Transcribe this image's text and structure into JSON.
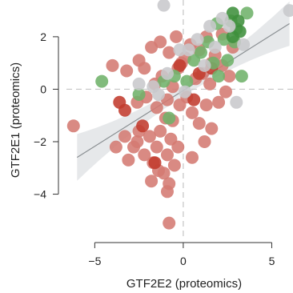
{
  "chart_data": {
    "type": "scatter",
    "xlabel": "GTF2E2 (proteomics)",
    "ylabel": "GTF2E1 (proteomics)",
    "xlim": [
      -6.6,
      6.2
    ],
    "ylim": [
      -5.6,
      3.4
    ],
    "x_ticks": [
      -5,
      0,
      5
    ],
    "y_ticks": [
      -4,
      -2,
      0,
      2
    ],
    "reference_lines": {
      "x": 0,
      "y": 0,
      "style": "dashed"
    },
    "regression_line": {
      "x": [
        -6,
        6
      ],
      "y": [
        -2.6,
        2.5
      ],
      "confidence_band": true
    },
    "grid": false,
    "legend": "none",
    "colors": {
      "red": "#d47a72",
      "dark_red": "#c23b2e",
      "green": "#6fb26a",
      "dark_green": "#3f8f3c",
      "grey": "#c8c8cc",
      "band": "#e3e6e8",
      "line": "#8a8f92",
      "ref_line": "#c4c4c4"
    },
    "points": [
      {
        "x": -6.2,
        "y": -1.4,
        "c": "red"
      },
      {
        "x": -3.8,
        "y": -2.2,
        "c": "red"
      },
      {
        "x": -3.3,
        "y": -1.8,
        "c": "red"
      },
      {
        "x": -3.1,
        "y": -2.7,
        "c": "red"
      },
      {
        "x": -2.8,
        "y": -2.2,
        "c": "red"
      },
      {
        "x": -2.5,
        "y": -1.6,
        "c": "red"
      },
      {
        "x": -2.2,
        "y": -2.5,
        "c": "red"
      },
      {
        "x": -1.9,
        "y": -1.8,
        "c": "red"
      },
      {
        "x": -1.7,
        "y": -2.8,
        "c": "red"
      },
      {
        "x": -1.5,
        "y": -2.2,
        "c": "red"
      },
      {
        "x": -1.3,
        "y": -1.6,
        "c": "red"
      },
      {
        "x": -1.1,
        "y": -3.2,
        "c": "red"
      },
      {
        "x": -0.9,
        "y": -2.5,
        "c": "red"
      },
      {
        "x": -0.8,
        "y": -3.6,
        "c": "red"
      },
      {
        "x": -0.7,
        "y": -1.9,
        "c": "red"
      },
      {
        "x": -0.5,
        "y": -2.9,
        "c": "red"
      },
      {
        "x": -0.3,
        "y": -2.2,
        "c": "red"
      },
      {
        "x": -0.9,
        "y": -3.9,
        "c": "red"
      },
      {
        "x": -0.8,
        "y": -5.1,
        "c": "red"
      },
      {
        "x": -1.8,
        "y": -3.5,
        "c": "red"
      },
      {
        "x": -1.4,
        "y": -3.1,
        "c": "red"
      },
      {
        "x": -2.6,
        "y": -2.0,
        "c": "red"
      },
      {
        "x": 0.5,
        "y": -2.6,
        "c": "red"
      },
      {
        "x": 1.2,
        "y": -2.0,
        "c": "red"
      },
      {
        "x": 1.6,
        "y": -1.5,
        "c": "red"
      },
      {
        "x": -1.6,
        "y": -2.8,
        "c": "dark_red"
      },
      {
        "x": -4.0,
        "y": 0.9,
        "c": "red"
      },
      {
        "x": -3.2,
        "y": 0.7,
        "c": "red"
      },
      {
        "x": -2.5,
        "y": 1.1,
        "c": "red"
      },
      {
        "x": -1.8,
        "y": 1.6,
        "c": "red"
      },
      {
        "x": -1.3,
        "y": 1.8,
        "c": "red"
      },
      {
        "x": -0.8,
        "y": 1.4,
        "c": "red"
      },
      {
        "x": -0.4,
        "y": 2.0,
        "c": "red"
      },
      {
        "x": -0.3,
        "y": 0.8,
        "c": "red"
      },
      {
        "x": -1.2,
        "y": 0.5,
        "c": "red"
      },
      {
        "x": -1.6,
        "y": 0.2,
        "c": "red"
      },
      {
        "x": -2.1,
        "y": -0.3,
        "c": "red"
      },
      {
        "x": -2.6,
        "y": -0.5,
        "c": "red"
      },
      {
        "x": -1.5,
        "y": -0.7,
        "c": "red"
      },
      {
        "x": -0.9,
        "y": -0.4,
        "c": "red"
      },
      {
        "x": -0.6,
        "y": -1.2,
        "c": "red"
      },
      {
        "x": -1.0,
        "y": -1.1,
        "c": "red"
      },
      {
        "x": -0.2,
        "y": -0.6,
        "c": "red"
      },
      {
        "x": 0.2,
        "y": -0.3,
        "c": "red"
      },
      {
        "x": 0.5,
        "y": -0.9,
        "c": "red"
      },
      {
        "x": 0.7,
        "y": 0.4,
        "c": "red"
      },
      {
        "x": 1.1,
        "y": 0.6,
        "c": "red"
      },
      {
        "x": 1.5,
        "y": 0.2,
        "c": "red"
      },
      {
        "x": 1.3,
        "y": -0.6,
        "c": "red"
      },
      {
        "x": 0.9,
        "y": -1.3,
        "c": "red"
      },
      {
        "x": 0.1,
        "y": 1.2,
        "c": "red"
      },
      {
        "x": 0.4,
        "y": 1.7,
        "c": "red"
      },
      {
        "x": 0.9,
        "y": 1.5,
        "c": "red"
      },
      {
        "x": 1.3,
        "y": 2.0,
        "c": "red"
      },
      {
        "x": 1.8,
        "y": 1.3,
        "c": "red"
      },
      {
        "x": 2.2,
        "y": 0.9,
        "c": "red"
      },
      {
        "x": 2.6,
        "y": 0.5,
        "c": "red"
      },
      {
        "x": 2.0,
        "y": -0.5,
        "c": "red"
      },
      {
        "x": 2.4,
        "y": -0.1,
        "c": "red"
      },
      {
        "x": 2.8,
        "y": 1.6,
        "c": "red"
      },
      {
        "x": 2.2,
        "y": 2.1,
        "c": "red"
      },
      {
        "x": 1.6,
        "y": 1.0,
        "c": "red"
      },
      {
        "x": -0.6,
        "y": 0.1,
        "c": "red"
      },
      {
        "x": -2.2,
        "y": 0.8,
        "c": "red"
      },
      {
        "x": -0.1,
        "y": 1.0,
        "c": "red"
      },
      {
        "x": -3.6,
        "y": -0.5,
        "c": "dark_red"
      },
      {
        "x": -3.3,
        "y": -0.8,
        "c": "dark_red"
      },
      {
        "x": -0.2,
        "y": 0.9,
        "c": "dark_red"
      },
      {
        "x": 0.6,
        "y": -0.4,
        "c": "dark_red"
      },
      {
        "x": 0.9,
        "y": 0.6,
        "c": "dark_red"
      },
      {
        "x": 1.6,
        "y": 0.8,
        "c": "dark_red"
      },
      {
        "x": -2.3,
        "y": -1.4,
        "c": "dark_red"
      },
      {
        "x": -4.6,
        "y": 0.3,
        "c": "green"
      },
      {
        "x": -2.5,
        "y": -0.2,
        "c": "green"
      },
      {
        "x": -1.1,
        "y": 0.3,
        "c": "green"
      },
      {
        "x": -0.8,
        "y": -1.1,
        "c": "green"
      },
      {
        "x": -0.5,
        "y": 0.5,
        "c": "green"
      },
      {
        "x": 0.2,
        "y": 0.3,
        "c": "green"
      },
      {
        "x": 0.6,
        "y": 1.1,
        "c": "green"
      },
      {
        "x": 1.0,
        "y": 1.4,
        "c": "green"
      },
      {
        "x": 1.4,
        "y": 1.8,
        "c": "green"
      },
      {
        "x": 1.9,
        "y": 2.5,
        "c": "green"
      },
      {
        "x": 2.3,
        "y": 1.9,
        "c": "green"
      },
      {
        "x": 2.5,
        "y": 1.1,
        "c": "green"
      },
      {
        "x": 2.7,
        "y": 2.6,
        "c": "green"
      },
      {
        "x": 3.0,
        "y": 2.3,
        "c": "green"
      },
      {
        "x": 3.3,
        "y": 0.5,
        "c": "green"
      },
      {
        "x": 3.6,
        "y": 2.9,
        "c": "green"
      },
      {
        "x": 2.9,
        "y": 1.8,
        "c": "green"
      },
      {
        "x": 2.0,
        "y": 0.5,
        "c": "green"
      },
      {
        "x": 1.7,
        "y": 1.0,
        "c": "green"
      },
      {
        "x": 3.1,
        "y": 2.6,
        "c": "dark_green"
      },
      {
        "x": 3.2,
        "y": 2.2,
        "c": "dark_green"
      },
      {
        "x": 2.8,
        "y": 2.9,
        "c": "dark_green"
      },
      {
        "x": 2.8,
        "y": 2.0,
        "c": "dark_green"
      },
      {
        "x": -1.1,
        "y": 3.2,
        "c": "grey"
      },
      {
        "x": 6.0,
        "y": 3.0,
        "c": "grey"
      },
      {
        "x": 3.0,
        "y": -0.5,
        "c": "grey"
      },
      {
        "x": 2.6,
        "y": 2.4,
        "c": "grey"
      },
      {
        "x": 2.2,
        "y": 2.7,
        "c": "grey"
      },
      {
        "x": 1.5,
        "y": 2.4,
        "c": "grey"
      },
      {
        "x": 0.8,
        "y": 1.9,
        "c": "grey"
      },
      {
        "x": 0.3,
        "y": 1.5,
        "c": "grey"
      },
      {
        "x": -0.2,
        "y": 1.5,
        "c": "grey"
      },
      {
        "x": -2.5,
        "y": 0.2,
        "c": "grey"
      },
      {
        "x": -1.4,
        "y": -0.2,
        "c": "grey"
      },
      {
        "x": -1.7,
        "y": 0.1,
        "c": "grey"
      },
      {
        "x": 1.2,
        "y": 0.9,
        "c": "grey"
      },
      {
        "x": 1.8,
        "y": 1.6,
        "c": "grey"
      },
      {
        "x": -0.9,
        "y": 0.6,
        "c": "grey"
      },
      {
        "x": 0.1,
        "y": -0.1,
        "c": "grey"
      },
      {
        "x": 3.4,
        "y": 1.7,
        "c": "grey"
      }
    ]
  }
}
